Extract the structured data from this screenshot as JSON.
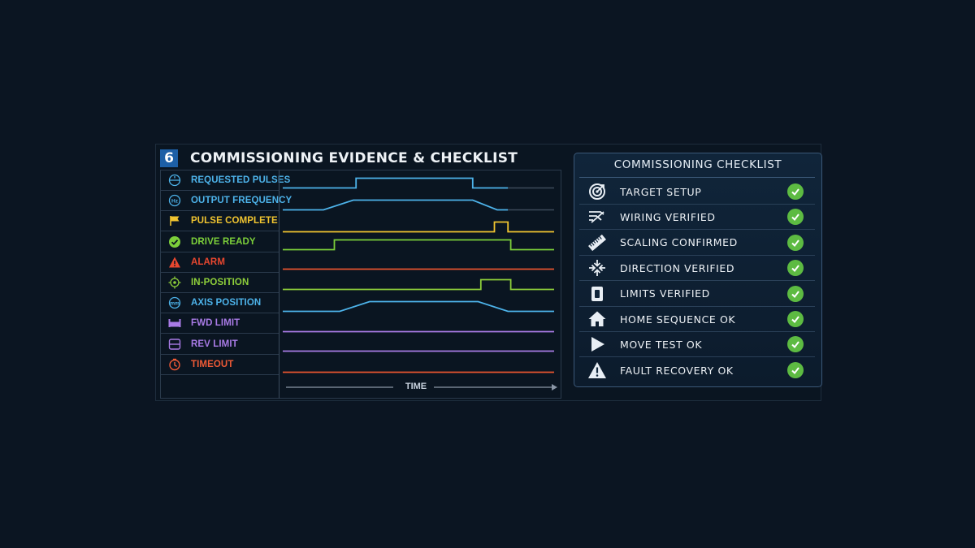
{
  "header": {
    "step_number": "6",
    "title": "COMMISSIONING EVIDENCE & CHECKLIST"
  },
  "signals": [
    {
      "label": "REQUESTED PULSES",
      "color": "#4db3ea",
      "icon": "requested-pulses-icon",
      "trace": [
        [
          0,
          0
        ],
        [
          0.27,
          0
        ],
        [
          0.27,
          1
        ],
        [
          0.7,
          1
        ],
        [
          0.7,
          0
        ],
        [
          0.83,
          0
        ]
      ],
      "trace_color": "#4db3ea",
      "tail_color": "#3d4a5a"
    },
    {
      "label": "OUTPUT FREQUENCY",
      "color": "#4db3ea",
      "icon": "output-frequency-icon",
      "trace": [
        [
          0,
          0
        ],
        [
          0.15,
          0
        ],
        [
          0.26,
          1
        ],
        [
          0.7,
          1
        ],
        [
          0.79,
          0
        ],
        [
          0.83,
          0
        ]
      ],
      "trace_color": "#4db3ea",
      "tail_color": "#3d4a5a"
    },
    {
      "label": "PULSE COMPLETE",
      "color": "#f0c430",
      "icon": "flag-icon",
      "trace": [
        [
          0,
          0
        ],
        [
          0.78,
          0
        ],
        [
          0.78,
          1
        ],
        [
          0.83,
          1
        ],
        [
          0.83,
          0
        ],
        [
          1,
          0
        ]
      ],
      "trace_color": "#f0c430"
    },
    {
      "label": "DRIVE READY",
      "color": "#7ccf3a",
      "icon": "drive-ready-check-icon",
      "trace": [
        [
          0,
          0
        ],
        [
          0.19,
          0
        ],
        [
          0.19,
          1
        ],
        [
          0.84,
          1
        ],
        [
          0.84,
          0
        ],
        [
          1,
          0
        ]
      ],
      "trace_color": "#7ccf3a"
    },
    {
      "label": "ALARM",
      "color": "#e8472f",
      "icon": "alarm-warning-icon",
      "trace": [
        [
          0,
          0
        ],
        [
          1,
          0
        ]
      ],
      "trace_color": "#e8552f"
    },
    {
      "label": "IN-POSITION",
      "color": "#8ecf3a",
      "icon": "in-position-target-icon",
      "trace": [
        [
          0,
          0
        ],
        [
          0.73,
          0
        ],
        [
          0.73,
          1
        ],
        [
          0.84,
          1
        ],
        [
          0.84,
          0
        ],
        [
          1,
          0
        ]
      ],
      "trace_color": "#8ecf3a"
    },
    {
      "label": "AXIS POSITION",
      "color": "#4db3ea",
      "icon": "axis-position-icon",
      "trace": [
        [
          0,
          0
        ],
        [
          0.21,
          0
        ],
        [
          0.32,
          1
        ],
        [
          0.72,
          1
        ],
        [
          0.83,
          0
        ],
        [
          1,
          0
        ]
      ],
      "trace_color": "#4db3ea"
    },
    {
      "label": "FWD LIMIT",
      "color": "#a97be6",
      "icon": "fwd-limit-icon",
      "trace": [
        [
          0,
          0
        ],
        [
          1,
          0
        ]
      ],
      "trace_color": "#a97be6"
    },
    {
      "label": "REV LIMIT",
      "color": "#a97be6",
      "icon": "rev-limit-icon",
      "trace": [
        [
          0,
          0
        ],
        [
          1,
          0
        ]
      ],
      "trace_color": "#a97be6"
    },
    {
      "label": "TIMEOUT",
      "color": "#ef5a36",
      "icon": "timeout-clock-icon",
      "trace": [
        [
          0,
          0
        ],
        [
          1,
          0
        ]
      ],
      "trace_color": "#e8552f"
    }
  ],
  "time_axis": {
    "label": "TIME"
  },
  "checklist": {
    "title": "COMMISSIONING CHECKLIST",
    "items": [
      {
        "label": "TARGET SETUP",
        "icon": "target-icon",
        "status": "ok"
      },
      {
        "label": "WIRING VERIFIED",
        "icon": "wiring-icon",
        "status": "ok"
      },
      {
        "label": "SCALING CONFIRMED",
        "icon": "ruler-icon",
        "status": "ok"
      },
      {
        "label": "DIRECTION VERIFIED",
        "icon": "direction-arrows-icon",
        "status": "ok"
      },
      {
        "label": "LIMITS VERIFIED",
        "icon": "limits-switch-icon",
        "status": "ok"
      },
      {
        "label": "HOME SEQUENCE OK",
        "icon": "home-icon",
        "status": "ok"
      },
      {
        "label": "MOVE TEST OK",
        "icon": "play-icon",
        "status": "ok"
      },
      {
        "label": "FAULT RECOVERY OK",
        "icon": "warning-icon",
        "status": "ok"
      }
    ]
  },
  "colors": {
    "check_ok": "#5dbb42",
    "panel_border": "#3b5878",
    "title_badge": "#1d5fa6"
  }
}
